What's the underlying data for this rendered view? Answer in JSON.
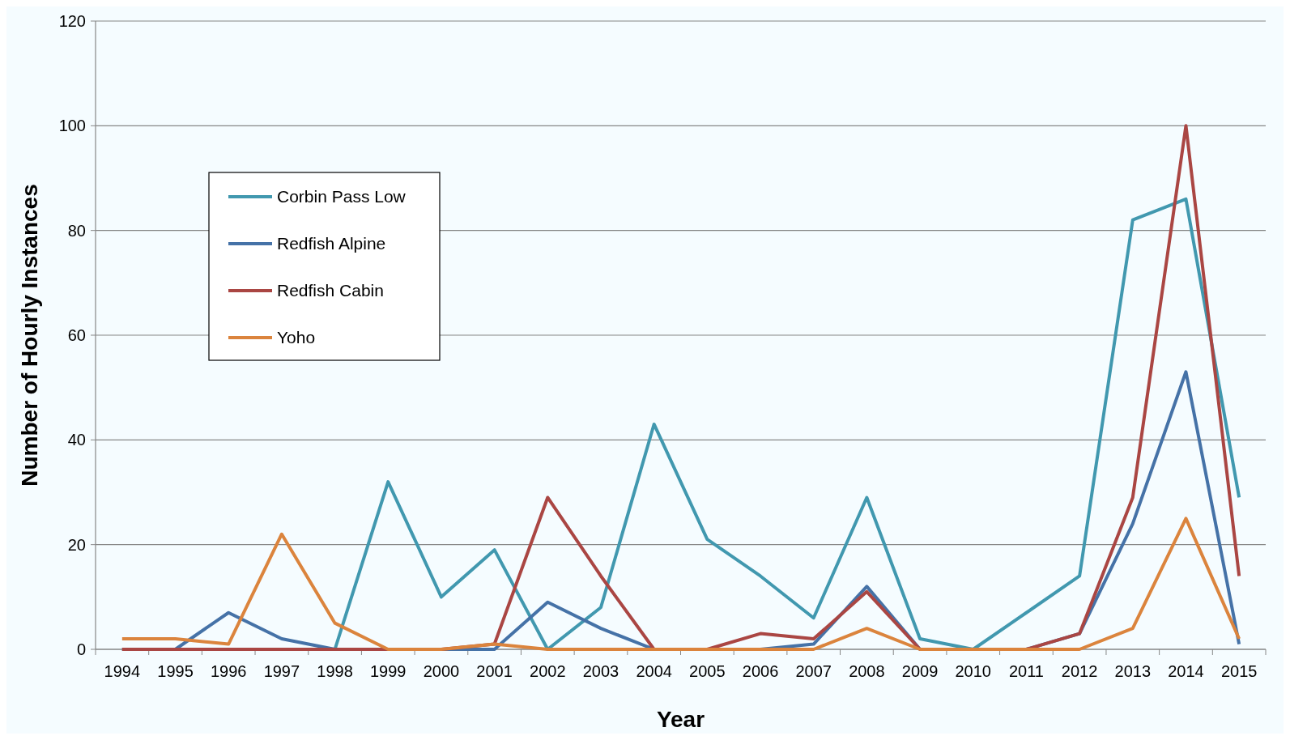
{
  "chart_data": {
    "type": "line",
    "xlabel": "Year",
    "ylabel": "Number of Hourly Instances",
    "categories": [
      "1994",
      "1995",
      "1996",
      "1997",
      "1998",
      "1999",
      "2000",
      "2001",
      "2002",
      "2003",
      "2004",
      "2005",
      "2006",
      "2007",
      "2008",
      "2009",
      "2010",
      "2011",
      "2012",
      "2013",
      "2014",
      "2015"
    ],
    "series": [
      {
        "name": "Corbin Pass Low",
        "color": "#4198af",
        "values": [
          0,
          0,
          0,
          0,
          0,
          32,
          10,
          19,
          0,
          8,
          43,
          21,
          14,
          6,
          29,
          2,
          0,
          7,
          14,
          82,
          86,
          29
        ]
      },
      {
        "name": "Redfish Alpine",
        "color": "#4572a7",
        "values": [
          0,
          0,
          7,
          2,
          0,
          0,
          0,
          0,
          9,
          4,
          0,
          0,
          0,
          1,
          12,
          0,
          0,
          0,
          3,
          24,
          53,
          1
        ]
      },
      {
        "name": "Redfish Cabin",
        "color": "#aa4643",
        "values": [
          0,
          0,
          0,
          0,
          0,
          0,
          0,
          1,
          29,
          14,
          0,
          0,
          3,
          2,
          11,
          0,
          0,
          0,
          3,
          29,
          100,
          14
        ]
      },
      {
        "name": "Yoho",
        "color": "#db843d",
        "values": [
          2,
          2,
          1,
          22,
          5,
          0,
          0,
          1,
          0,
          0,
          0,
          0,
          0,
          0,
          4,
          0,
          0,
          0,
          0,
          4,
          25,
          2
        ]
      }
    ],
    "ylim": [
      0,
      120
    ],
    "yticks": [
      0,
      20,
      40,
      60,
      80,
      100,
      120
    ],
    "grid": "y",
    "legend": "top left",
    "marker": "none",
    "line_style": "solid"
  }
}
